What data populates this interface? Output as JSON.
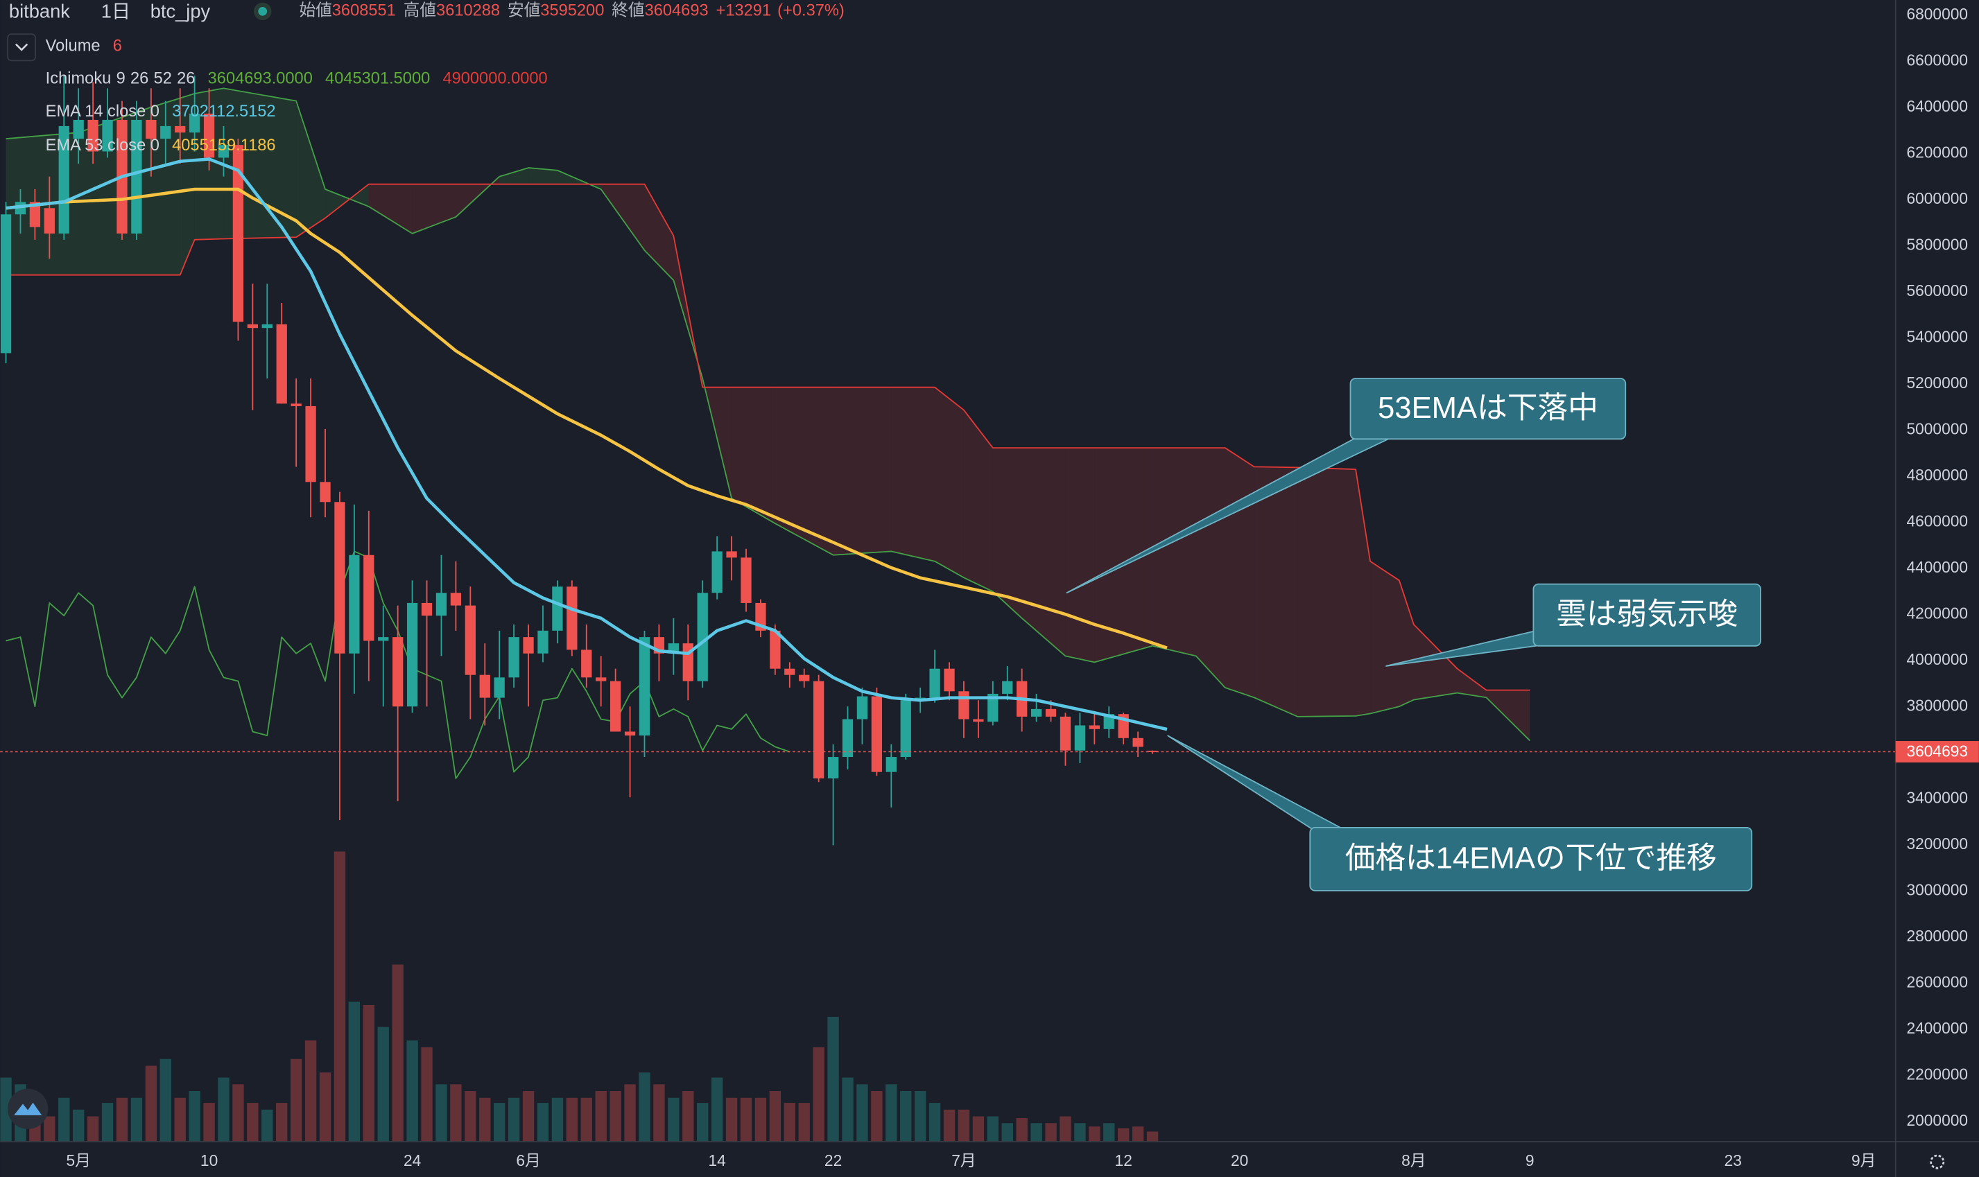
{
  "header": {
    "exchange": "bitbank",
    "interval": "1日",
    "symbol": "btc_jpy",
    "open_label": "始値",
    "high_label": "高値",
    "low_label": "安値",
    "close_label": "終値",
    "change": "+13291",
    "change_pct": "(+0.37%)"
  },
  "chart_data": {
    "type": "candlestick",
    "x": [
      -5,
      -4,
      -3,
      -2,
      -1,
      0,
      1,
      2,
      3,
      4,
      5,
      6,
      7,
      8,
      9,
      10,
      11,
      12,
      13,
      14,
      15,
      16,
      17,
      18,
      19,
      20,
      21,
      22,
      23,
      24,
      25,
      26,
      27,
      28,
      29,
      30,
      31,
      32,
      33,
      34,
      35,
      36,
      37,
      38,
      39,
      40,
      41,
      42,
      43,
      44,
      45,
      46,
      47,
      48,
      49,
      50,
      51,
      52,
      53,
      54,
      55,
      56,
      57,
      58,
      59,
      60,
      61,
      62,
      63,
      64,
      65,
      66,
      67,
      68,
      69,
      70,
      71,
      72,
      73,
      74
    ],
    "open": [
      5334000,
      5936000,
      5990000,
      5963000,
      5853000,
      6264000,
      6346000,
      6209000,
      6346000,
      5853000,
      6346000,
      6264000,
      6319000,
      6291000,
      6373000,
      6182000,
      6237000,
      5459000,
      5443000,
      5459000,
      5115000,
      5104000,
      4775000,
      4688000,
      4031000,
      4458000,
      4086000,
      4102000,
      3801000,
      4250000,
      4195000,
      4294000,
      4239000,
      3938000,
      3839000,
      3927000,
      4102000,
      4031000,
      4130000,
      4321000,
      4047000,
      3927000,
      3911000,
      3692000,
      3675000,
      4102000,
      4031000,
      4075000,
      3911000,
      4294000,
      4474000,
      4447000,
      4250000,
      4130000,
      3965000,
      3938000,
      3911000,
      3489000,
      3582000,
      3746000,
      3845000,
      3517000,
      3582000,
      3828000,
      3839000,
      3965000,
      3867000,
      3746000,
      3735000,
      3856000,
      3911000,
      3757000,
      3790000,
      3757000,
      3610000,
      3719000,
      3703000,
      3768000,
      3664000,
      3608551
    ],
    "high": [
      5990000,
      6045000,
      6045000,
      6100000,
      6538000,
      6483000,
      6510000,
      6483000,
      6428000,
      6428000,
      6483000,
      6428000,
      6483000,
      6538000,
      6483000,
      6319000,
      6264000,
      5635000,
      5635000,
      5552000,
      5224000,
      5224000,
      5005000,
      4732000,
      4677000,
      4650000,
      4239000,
      4239000,
      4348000,
      4348000,
      4458000,
      4431000,
      4321000,
      4075000,
      4130000,
      4157000,
      4157000,
      4239000,
      4348000,
      4348000,
      4157000,
      4020000,
      3965000,
      3801000,
      4130000,
      4157000,
      4184000,
      4157000,
      4348000,
      4540000,
      4540000,
      4485000,
      4266000,
      4157000,
      3993000,
      3965000,
      3938000,
      3637000,
      3801000,
      3883000,
      3883000,
      3637000,
      3856000,
      3883000,
      4047000,
      3993000,
      3911000,
      3828000,
      3911000,
      3976000,
      3965000,
      3856000,
      3828000,
      3774000,
      3774000,
      3774000,
      3801000,
      3774000,
      3692000,
      3610288
    ],
    "low": [
      5290000,
      5853000,
      5826000,
      5744000,
      5826000,
      6155000,
      6155000,
      6182000,
      5826000,
      5826000,
      6100000,
      6155000,
      6155000,
      6209000,
      6127000,
      6100000,
      5388000,
      5087000,
      5224000,
      5115000,
      4841000,
      4622000,
      4622000,
      3308000,
      3856000,
      3911000,
      3801000,
      3390000,
      3774000,
      3801000,
      4020000,
      4130000,
      3746000,
      3719000,
      3746000,
      3883000,
      3801000,
      3993000,
      4075000,
      4020000,
      3883000,
      3801000,
      3692000,
      3407000,
      3582000,
      3911000,
      3938000,
      3828000,
      3883000,
      4266000,
      4348000,
      4212000,
      4102000,
      3938000,
      3883000,
      3883000,
      3473000,
      3199000,
      3528000,
      3637000,
      3500000,
      3363000,
      3571000,
      3774000,
      3818000,
      3828000,
      3664000,
      3664000,
      3719000,
      3828000,
      3692000,
      3735000,
      3735000,
      3544000,
      3555000,
      3637000,
      3664000,
      3637000,
      3582000,
      3595200
    ],
    "close": [
      5936000,
      5990000,
      5881000,
      5853000,
      6319000,
      6346000,
      6209000,
      6346000,
      5853000,
      6346000,
      6264000,
      6319000,
      6291000,
      6373000,
      6182000,
      6237000,
      5470000,
      5443000,
      5459000,
      5115000,
      5104000,
      4775000,
      4688000,
      4031000,
      4458000,
      4086000,
      4102000,
      3801000,
      4250000,
      4195000,
      4294000,
      4239000,
      3938000,
      3839000,
      3927000,
      4102000,
      4031000,
      4130000,
      4321000,
      4047000,
      3927000,
      3911000,
      3692000,
      3675000,
      4102000,
      4031000,
      4075000,
      3911000,
      4294000,
      4474000,
      4447000,
      4250000,
      4130000,
      3965000,
      3938000,
      3911000,
      3489000,
      3582000,
      3746000,
      3845000,
      3517000,
      3582000,
      3828000,
      3839000,
      3965000,
      3867000,
      3746000,
      3735000,
      3856000,
      3911000,
      3757000,
      3790000,
      3757000,
      3610000,
      3719000,
      3703000,
      3768000,
      3664000,
      3626000,
      3604693
    ],
    "up_color": "#26a69a",
    "down_color": "#ef5350",
    "volume": {
      "name": "Volume",
      "values": [
        38,
        34,
        23,
        15,
        26,
        19,
        15,
        23,
        26,
        26,
        45,
        49,
        26,
        30,
        23,
        38,
        34,
        23,
        19,
        23,
        49,
        60,
        41,
        172,
        83,
        81,
        68,
        105,
        60,
        56,
        34,
        34,
        30,
        26,
        23,
        26,
        30,
        23,
        26,
        26,
        26,
        30,
        30,
        34,
        41,
        34,
        26,
        30,
        23,
        38,
        26,
        26,
        26,
        30,
        23,
        23,
        56,
        74,
        38,
        34,
        30,
        34,
        30,
        30,
        23,
        19,
        19,
        15,
        15,
        11,
        14,
        11,
        11,
        15,
        11,
        9,
        11,
        8,
        9,
        6
      ]
    },
    "ema14": {
      "name": "EMA 14 close 0",
      "color": "#5cc8e6",
      "x": [
        -5,
        -1,
        3,
        7,
        9,
        11,
        12,
        14,
        16,
        18,
        20,
        22,
        24,
        26,
        28,
        30,
        32,
        34,
        36,
        38,
        40,
        42,
        44,
        46,
        48,
        50,
        52,
        54,
        56,
        58,
        60,
        62,
        64,
        66,
        68,
        70,
        72,
        75
      ],
      "values": [
        5963000,
        5990000,
        6100000,
        6166000,
        6176000,
        6127000,
        6045000,
        5881000,
        5689000,
        5416000,
        5169000,
        4923000,
        4704000,
        4578000,
        4458000,
        4338000,
        4272000,
        4223000,
        4184000,
        4102000,
        4042000,
        4031000,
        4130000,
        4173000,
        4130000,
        4009000,
        3927000,
        3867000,
        3839000,
        3828000,
        3839000,
        3839000,
        3839000,
        3828000,
        3801000,
        3774000,
        3746000,
        3702112.5152
      ]
    },
    "ema53": {
      "name": "EMA 53 close 0",
      "color": "#f6c343",
      "x": [
        -5,
        -1,
        3,
        8,
        11,
        12,
        15,
        16,
        18,
        21,
        23,
        26,
        29,
        33,
        36,
        38,
        40,
        42,
        44,
        46,
        48,
        50,
        52,
        54,
        56,
        58,
        60,
        62,
        64,
        66,
        68,
        70,
        72,
        75
      ],
      "values": [
        5963000,
        5990000,
        6001000,
        6045000,
        6045000,
        6007000,
        5908000,
        5853000,
        5771000,
        5607000,
        5498000,
        5344000,
        5224000,
        5071000,
        4978000,
        4907000,
        4830000,
        4759000,
        4715000,
        4677000,
        4622000,
        4567000,
        4513000,
        4458000,
        4403000,
        4359000,
        4332000,
        4305000,
        4277000,
        4239000,
        4201000,
        4157000,
        4119000,
        4055159.1186
      ]
    },
    "ichimoku": {
      "name": "Ichimoku",
      "params": [
        9,
        26,
        52,
        26
      ],
      "legend_values": [
        "3604693.0000",
        "4045301.5000",
        "4900000.0000"
      ],
      "x": [
        -5,
        0,
        5,
        7,
        8,
        10,
        15,
        17,
        20,
        23,
        26,
        29,
        31,
        33,
        36,
        39,
        41,
        43,
        45,
        48,
        52,
        56,
        59,
        61,
        63,
        65,
        68,
        70,
        74,
        77,
        79,
        81,
        84,
        88,
        89,
        91,
        92,
        95,
        97,
        100
      ],
      "span_a": [
        6264000,
        6291000,
        6401000,
        6440000,
        6460000,
        6483000,
        6428000,
        6045000,
        5970000,
        5853000,
        5925000,
        6100000,
        6138000,
        6127000,
        6045000,
        5780000,
        5650000,
        5224000,
        4704000,
        4595000,
        4458000,
        4474000,
        4431000,
        4360000,
        4300000,
        4184000,
        4020000,
        3993000,
        4064000,
        4020000,
        3883000,
        3840000,
        3757000,
        3760000,
        3770000,
        3801000,
        3830000,
        3860000,
        3840000,
        3653000
      ],
      "span_b": [
        5673000,
        5673000,
        5673000,
        5673000,
        5826000,
        5830000,
        5837000,
        5920000,
        6067000,
        6067000,
        6067000,
        6067000,
        6067000,
        6067000,
        6067000,
        6067000,
        5843000,
        5186000,
        5186000,
        5186000,
        5186000,
        5186000,
        5186000,
        5087000,
        4923000,
        4923000,
        4923000,
        4923000,
        4923000,
        4923000,
        4923000,
        4841000,
        4838000,
        4830000,
        4431000,
        4348000,
        4157000,
        3965000,
        3872000,
        3872000
      ],
      "span_a_color": "#43a047",
      "span_b_color": "#e53935",
      "lagging_color": "#43a047"
    },
    "xlim": [
      -5.4,
      125.2
    ],
    "xticks": [
      {
        "value": 0,
        "label": "5月"
      },
      {
        "value": 9,
        "label": "10"
      },
      {
        "value": 23,
        "label": "24"
      },
      {
        "value": 31,
        "label": "6月"
      },
      {
        "value": 44,
        "label": "14"
      },
      {
        "value": 52,
        "label": "22"
      },
      {
        "value": 61,
        "label": "7月"
      },
      {
        "value": 72,
        "label": "12"
      },
      {
        "value": 80,
        "label": "20"
      },
      {
        "value": 92,
        "label": "8月"
      },
      {
        "value": 100,
        "label": "9"
      },
      {
        "value": 114,
        "label": "23"
      },
      {
        "value": 123,
        "label": "9月"
      }
    ],
    "ylim": [
      1913000,
      6866000
    ],
    "yticks": [
      2000000,
      2200000,
      2400000,
      2600000,
      2800000,
      3000000,
      3200000,
      3400000,
      3600000,
      3800000,
      4000000,
      4200000,
      4400000,
      4600000,
      4800000,
      5000000,
      5200000,
      5400000,
      5600000,
      5800000,
      6000000,
      6200000,
      6400000,
      6600000,
      6800000
    ],
    "grid": false,
    "annotations": [
      "53EMAは下落中",
      "雲は弱気示唆",
      "価格は14EMAの下位で推移"
    ]
  }
}
